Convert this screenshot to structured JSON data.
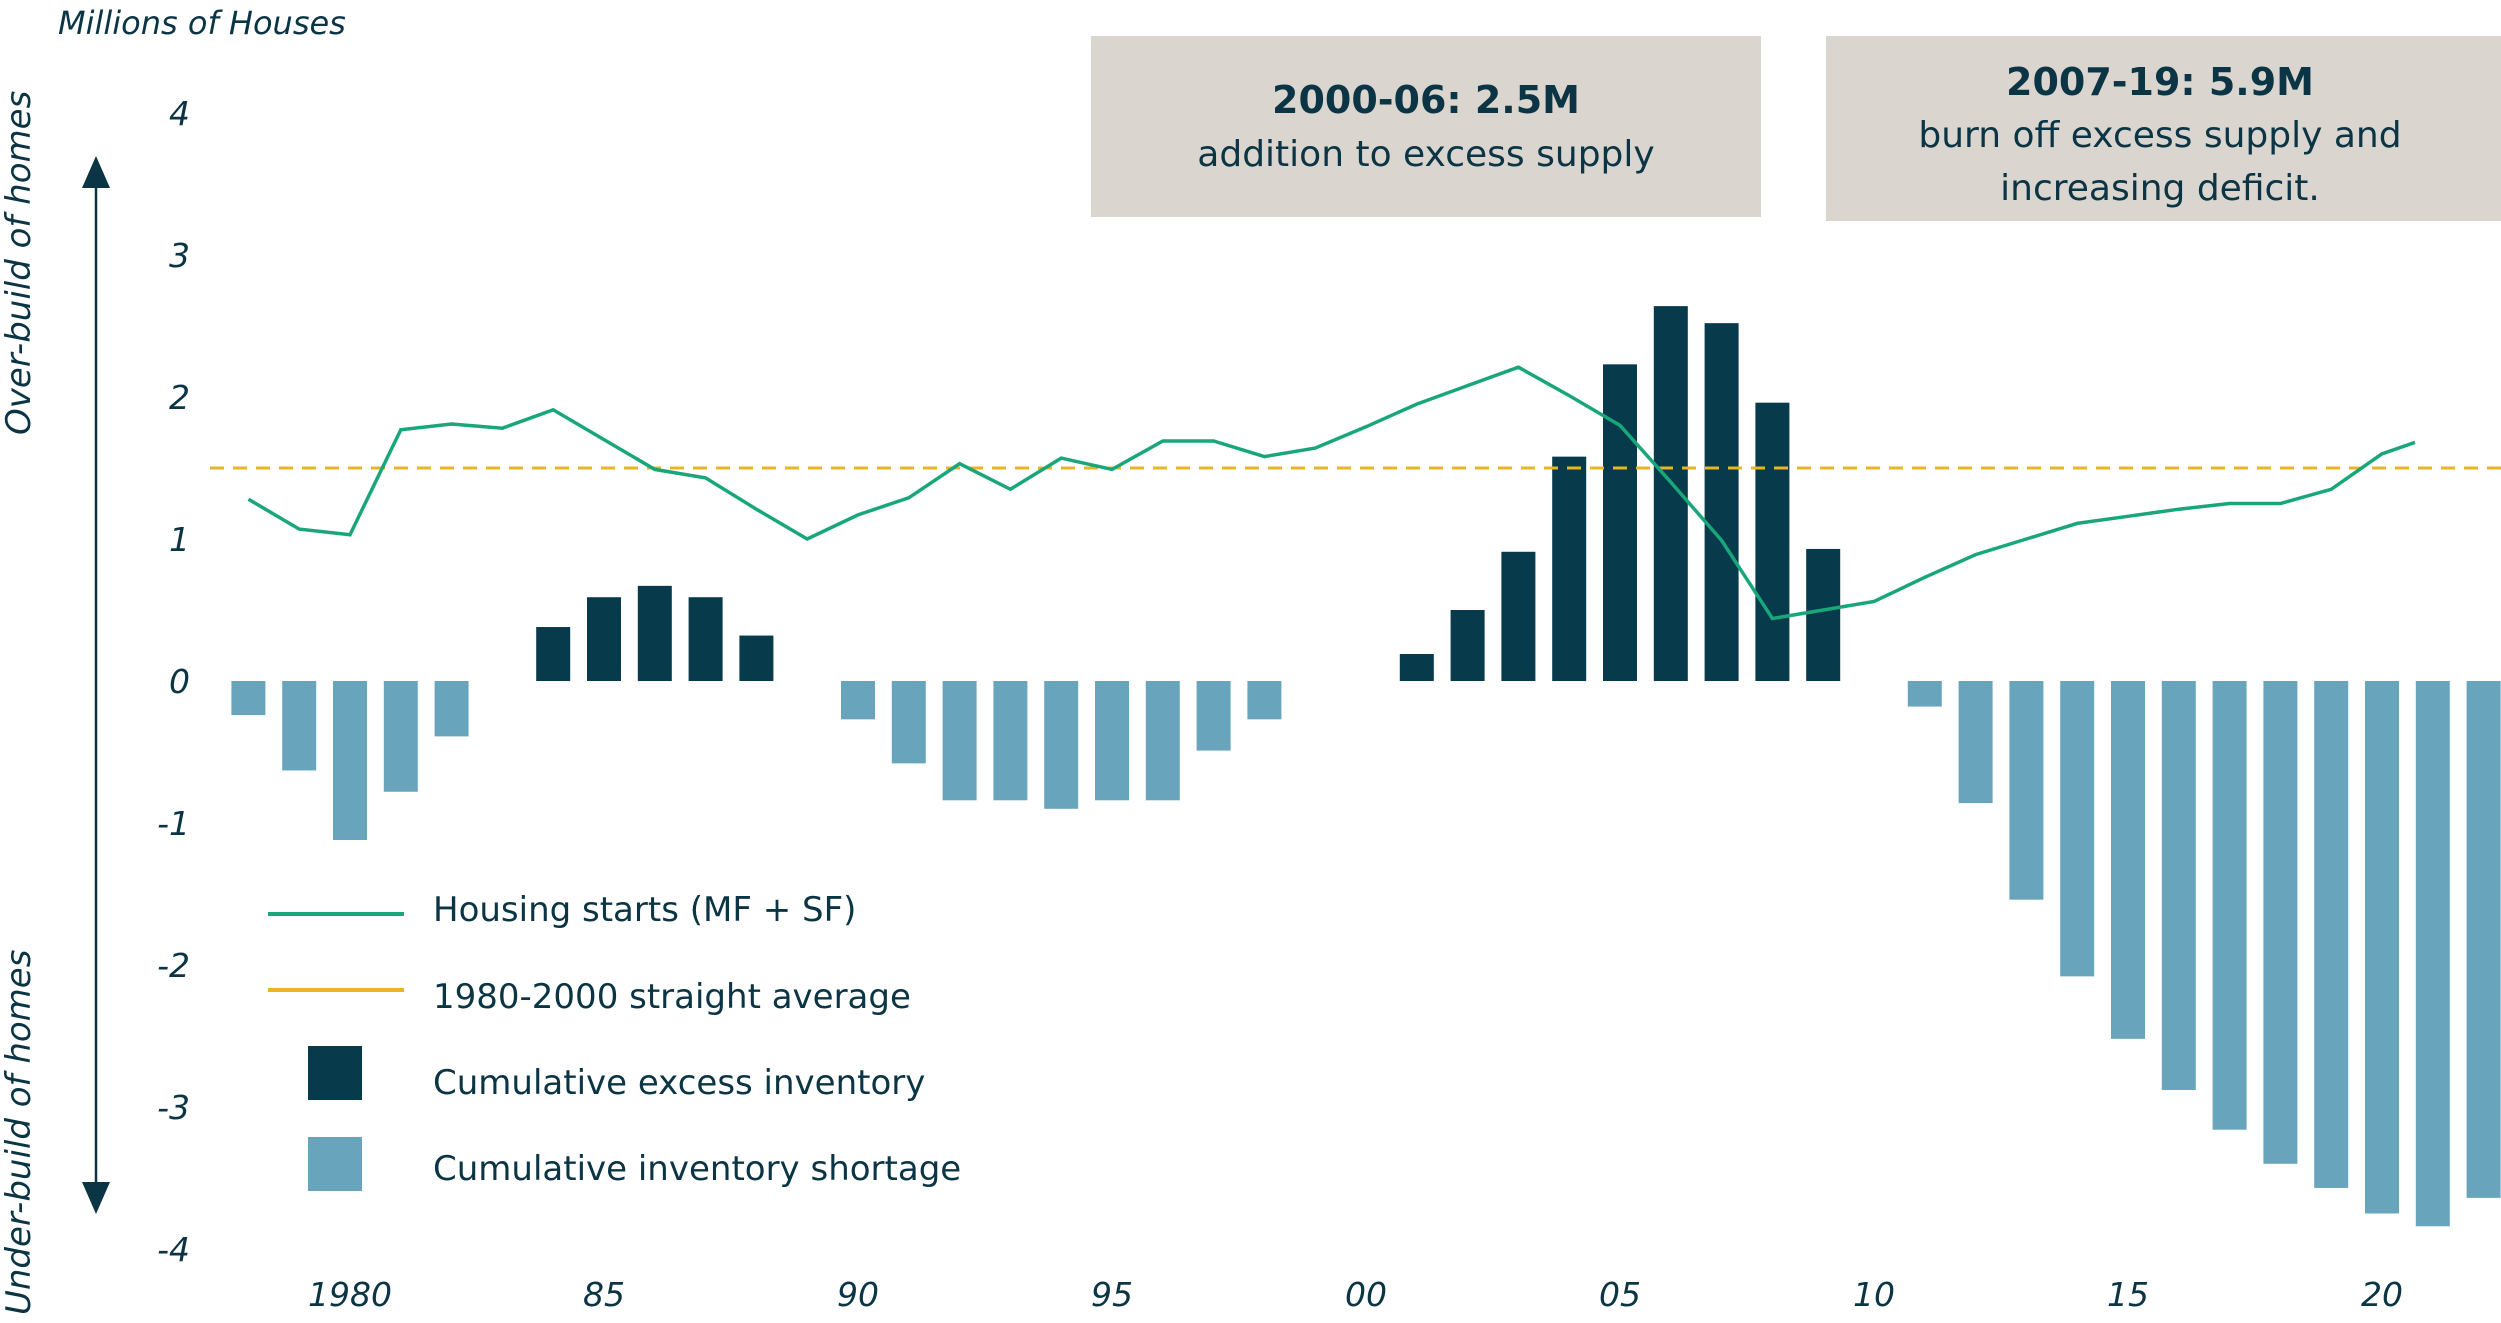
{
  "chart_data": {
    "type": "bar",
    "ylabel": "Millions of Houses",
    "ylim": [
      -4,
      4
    ],
    "yticks": [
      "4",
      "3",
      "2",
      "1",
      "0",
      "-1",
      "-2",
      "-3",
      "-4"
    ],
    "x": [
      1978,
      1979,
      1980,
      1981,
      1982,
      1983,
      1984,
      1985,
      1986,
      1987,
      1988,
      1989,
      1990,
      1991,
      1992,
      1993,
      1994,
      1995,
      1996,
      1997,
      1998,
      1999,
      2000,
      2001,
      2002,
      2003,
      2004,
      2005,
      2006,
      2007,
      2008,
      2009,
      2010,
      2011,
      2012,
      2013,
      2014,
      2015,
      2016,
      2017,
      2018,
      2019,
      2020,
      2021,
      2022
    ],
    "xticks": [
      {
        "year": 1980,
        "label": "1980"
      },
      {
        "year": 1985,
        "label": "85"
      },
      {
        "year": 1990,
        "label": "90"
      },
      {
        "year": 1995,
        "label": "95"
      },
      {
        "year": 2000,
        "label": "00"
      },
      {
        "year": 2005,
        "label": "05"
      },
      {
        "year": 2010,
        "label": "10"
      },
      {
        "year": 2015,
        "label": "15"
      },
      {
        "year": 2020,
        "label": "20"
      }
    ],
    "side_labels": {
      "up": "Over-build of homes",
      "down": "Under-build of homes"
    },
    "series": [
      {
        "name": "Housing starts (MF + SF)",
        "kind": "line",
        "color": "#19a67a",
        "points": [
          [
            1978,
            1.28
          ],
          [
            1979,
            1.07
          ],
          [
            1980,
            1.03
          ],
          [
            1981,
            1.77
          ],
          [
            1982,
            1.81
          ],
          [
            1983,
            1.78
          ],
          [
            1984,
            1.91
          ],
          [
            1985,
            1.7
          ],
          [
            1986,
            1.49
          ],
          [
            1987,
            1.43
          ],
          [
            1988,
            1.21
          ],
          [
            1989,
            1.0
          ],
          [
            1990,
            1.17
          ],
          [
            1991,
            1.29
          ],
          [
            1992,
            1.53
          ],
          [
            1993,
            1.35
          ],
          [
            1994,
            1.57
          ],
          [
            1995,
            1.49
          ],
          [
            1996,
            1.69
          ],
          [
            1997,
            1.69
          ],
          [
            1998,
            1.58
          ],
          [
            1999,
            1.64
          ],
          [
            2000,
            1.79
          ],
          [
            2001,
            1.95
          ],
          [
            2002,
            2.08
          ],
          [
            2003,
            2.21
          ],
          [
            2004,
            2.01
          ],
          [
            2005,
            1.8
          ],
          [
            2006,
            1.4
          ],
          [
            2007,
            0.99
          ],
          [
            2008,
            0.44
          ],
          [
            2009,
            0.5
          ],
          [
            2010,
            0.56
          ],
          [
            2011,
            0.73
          ],
          [
            2012,
            0.89
          ],
          [
            2013,
            1.0
          ],
          [
            2014,
            1.11
          ],
          [
            2015,
            1.16
          ],
          [
            2016,
            1.21
          ],
          [
            2017,
            1.25
          ],
          [
            2018,
            1.25
          ],
          [
            2019,
            1.35
          ],
          [
            2020,
            1.6
          ],
          [
            2020.65,
            1.68
          ]
        ]
      },
      {
        "name": "1980-2000 straight average",
        "kind": "dashed-line",
        "color": "#e8b526",
        "value": 1.5
      },
      {
        "name": "Cumulative excess inventory",
        "kind": "bar",
        "color": "#073a4b",
        "values": [
          [
            1984,
            0.38
          ],
          [
            1985,
            0.59
          ],
          [
            1986,
            0.67
          ],
          [
            1987,
            0.59
          ],
          [
            1988,
            0.32
          ],
          [
            2001,
            0.19
          ],
          [
            2002,
            0.5
          ],
          [
            2003,
            0.91
          ],
          [
            2004,
            1.58
          ],
          [
            2005,
            2.23
          ],
          [
            2006,
            2.64
          ],
          [
            2007,
            2.52
          ],
          [
            2008,
            1.96
          ],
          [
            2009,
            0.93
          ]
        ]
      },
      {
        "name": "Cumulative inventory shortage",
        "kind": "bar",
        "color": "#68a5bc",
        "values": [
          [
            1978,
            -0.24
          ],
          [
            1979,
            -0.63
          ],
          [
            1980,
            -1.12
          ],
          [
            1981,
            -0.78
          ],
          [
            1982,
            -0.39
          ],
          [
            1990,
            -0.27
          ],
          [
            1991,
            -0.58
          ],
          [
            1992,
            -0.84
          ],
          [
            1993,
            -0.84
          ],
          [
            1994,
            -0.9
          ],
          [
            1995,
            -0.84
          ],
          [
            1996,
            -0.84
          ],
          [
            1997,
            -0.49
          ],
          [
            1998,
            -0.27
          ],
          [
            2011,
            -0.18
          ],
          [
            2012,
            -0.86
          ],
          [
            2013,
            -1.54
          ],
          [
            2014,
            -2.08
          ],
          [
            2015,
            -2.52
          ],
          [
            2016,
            -2.88
          ],
          [
            2017,
            -3.16
          ],
          [
            2018,
            -3.4
          ],
          [
            2019,
            -3.57
          ],
          [
            2020,
            -3.75
          ],
          [
            2021,
            -3.84
          ],
          [
            2022,
            -3.64
          ]
        ]
      }
    ],
    "annotations": [
      {
        "title": "2000-06: 2.5M",
        "lines": [
          "addition to excess supply"
        ],
        "background": "#dad5ce"
      },
      {
        "title": "2007-19: 5.9M",
        "lines": [
          "burn off excess supply and",
          "increasing deficit."
        ],
        "background": "#dad5ce"
      }
    ],
    "legend_position": "bottom-left",
    "grid": false
  }
}
